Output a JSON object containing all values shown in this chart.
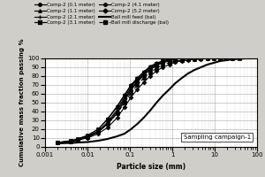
{
  "title": "Sampling campaign-1",
  "xlabel": "Particle size (mm)",
  "ylabel": "Cumulative mass fraction passing %",
  "background_color": "#d0cec8",
  "plot_bg_color": "#ffffff",
  "xlim": [
    0.001,
    100
  ],
  "ylim": [
    0,
    100
  ],
  "series": {
    "comp2_0.1": {
      "label": "Comp-2 (0.1 meter)",
      "color": "#000000",
      "marker": "o",
      "markersize": 2.5,
      "linestyle": "-",
      "linewidth": 0.8,
      "x": [
        0.002,
        0.004,
        0.006,
        0.01,
        0.018,
        0.03,
        0.05,
        0.075,
        0.106,
        0.15,
        0.212,
        0.3,
        0.425,
        0.6,
        0.85,
        1.18,
        1.7,
        2.36
      ],
      "y": [
        5,
        6,
        8,
        11,
        17,
        26,
        38,
        52,
        64,
        73,
        81,
        87,
        92,
        95,
        97,
        99,
        100,
        100
      ]
    },
    "comp2_1.1": {
      "label": "Comp-2 (1.1 meter)",
      "color": "#000000",
      "marker": "^",
      "markersize": 2.5,
      "linestyle": "-",
      "linewidth": 0.8,
      "x": [
        0.002,
        0.004,
        0.006,
        0.01,
        0.018,
        0.03,
        0.05,
        0.075,
        0.106,
        0.15,
        0.212,
        0.3,
        0.425,
        0.6,
        0.85,
        1.18,
        1.7
      ],
      "y": [
        5,
        6,
        8,
        12,
        18,
        28,
        42,
        56,
        67,
        76,
        83,
        89,
        93,
        96,
        98,
        99,
        100
      ]
    },
    "comp2_2.1": {
      "label": "Comp-2 (2.1 meter)",
      "color": "#000000",
      "marker": "+",
      "markersize": 3.5,
      "linestyle": "-",
      "linewidth": 0.8,
      "x": [
        0.002,
        0.004,
        0.006,
        0.01,
        0.018,
        0.03,
        0.05,
        0.075,
        0.106,
        0.15,
        0.212,
        0.3,
        0.425,
        0.6,
        0.85,
        1.18
      ],
      "y": [
        5,
        6,
        8,
        11,
        17,
        27,
        40,
        54,
        65,
        74,
        82,
        88,
        93,
        96,
        98,
        100
      ]
    },
    "comp2_3.1": {
      "label": "Comp-2 (3.1 meter)",
      "color": "#000000",
      "marker": "s",
      "markersize": 2.5,
      "linestyle": "-",
      "linewidth": 0.8,
      "x": [
        0.002,
        0.004,
        0.006,
        0.01,
        0.018,
        0.03,
        0.05,
        0.075,
        0.106,
        0.15,
        0.212,
        0.3,
        0.425,
        0.6,
        0.85
      ],
      "y": [
        5,
        7,
        9,
        13,
        20,
        31,
        45,
        58,
        69,
        77,
        84,
        90,
        94,
        97,
        99
      ]
    },
    "comp2_4.1": {
      "label": "Comp-2 (4.1 meter)",
      "color": "#000000",
      "marker": "o",
      "markersize": 2.5,
      "linestyle": "-",
      "linewidth": 0.8,
      "x": [
        0.002,
        0.004,
        0.006,
        0.01,
        0.018,
        0.03,
        0.05,
        0.075,
        0.106,
        0.15,
        0.212,
        0.3,
        0.425,
        0.6,
        0.85,
        1.18
      ],
      "y": [
        5,
        7,
        9,
        13,
        20,
        32,
        46,
        59,
        70,
        78,
        85,
        91,
        95,
        97,
        99,
        100
      ]
    },
    "comp2_5.2": {
      "label": "Comp-2 (5.2 meter)",
      "color": "#000000",
      "marker": "D",
      "markersize": 2.5,
      "linestyle": "-",
      "linewidth": 0.8,
      "x": [
        0.002,
        0.004,
        0.006,
        0.01,
        0.018,
        0.03,
        0.05,
        0.075,
        0.106,
        0.15,
        0.212,
        0.3,
        0.425,
        0.6,
        0.85,
        1.18,
        1.7,
        2.36,
        3.35,
        4.75,
        6.7,
        9.5,
        13.3,
        19.0,
        26.5
      ],
      "y": [
        5,
        6,
        8,
        10,
        15,
        22,
        33,
        45,
        56,
        65,
        73,
        80,
        86,
        90,
        93,
        96,
        97,
        98,
        99,
        99,
        100,
        100,
        100,
        100,
        100
      ]
    },
    "ball_mill_feed": {
      "label": "Ball mill feed (bal)",
      "color": "#000000",
      "marker": null,
      "markersize": 0,
      "linestyle": "-",
      "linewidth": 1.5,
      "x": [
        0.002,
        0.004,
        0.006,
        0.01,
        0.018,
        0.03,
        0.05,
        0.075,
        0.106,
        0.15,
        0.212,
        0.3,
        0.425,
        0.6,
        0.85,
        1.18,
        1.7,
        2.36,
        3.35,
        4.75,
        6.7,
        9.5,
        13.3,
        19.0,
        26.5,
        37.5,
        53.0,
        75.0
      ],
      "y": [
        4,
        4.5,
        5,
        5.5,
        7,
        9,
        12,
        15,
        20,
        26,
        33,
        41,
        50,
        58,
        65,
        72,
        78,
        83,
        87,
        90,
        93,
        95,
        97,
        98,
        99,
        99.5,
        100,
        100
      ]
    },
    "ball_mill_discharge": {
      "label": "Ball mill discharge (bal)",
      "color": "#000000",
      "marker": "s",
      "markersize": 2.5,
      "linestyle": "--",
      "linewidth": 0.8,
      "x": [
        0.002,
        0.004,
        0.006,
        0.01,
        0.018,
        0.03,
        0.05,
        0.075,
        0.106,
        0.15,
        0.212,
        0.3,
        0.425,
        0.6,
        0.85,
        1.18,
        1.7,
        2.36,
        3.35,
        4.75,
        6.7,
        9.5,
        13.3,
        19.0,
        26.5,
        37.5
      ],
      "y": [
        5,
        6,
        8,
        11,
        17,
        26,
        38,
        50,
        61,
        70,
        78,
        84,
        89,
        93,
        95,
        97,
        98,
        99,
        99.5,
        100,
        100,
        100,
        100,
        100,
        100,
        100
      ]
    }
  },
  "legend_entries": [
    {
      "label": "Comp-2 (0.1 meter)",
      "marker": "o",
      "linestyle": "-",
      "lw": 0.8
    },
    {
      "label": "Comp-2 (1.1 meter)",
      "marker": "^",
      "linestyle": "-",
      "lw": 0.8
    },
    {
      "label": "Comp-2 (2.1 meter)",
      "marker": "+",
      "linestyle": "-",
      "lw": 0.8
    },
    {
      "label": "Comp-2 (3.1 meter)",
      "marker": "s",
      "linestyle": "-",
      "lw": 0.8
    },
    {
      "label": "Comp-2 (4.1 meter)",
      "marker": "o",
      "linestyle": "-",
      "lw": 0.8
    },
    {
      "label": "Comp-2 (5.2 meter)",
      "marker": "D",
      "linestyle": "-",
      "lw": 0.8
    },
    {
      "label": "Ball mill feed (bal)",
      "marker": null,
      "linestyle": "-",
      "lw": 1.5
    },
    {
      "label": "Ball mill discharge (bal)",
      "marker": "s",
      "linestyle": "--",
      "lw": 0.8
    }
  ]
}
